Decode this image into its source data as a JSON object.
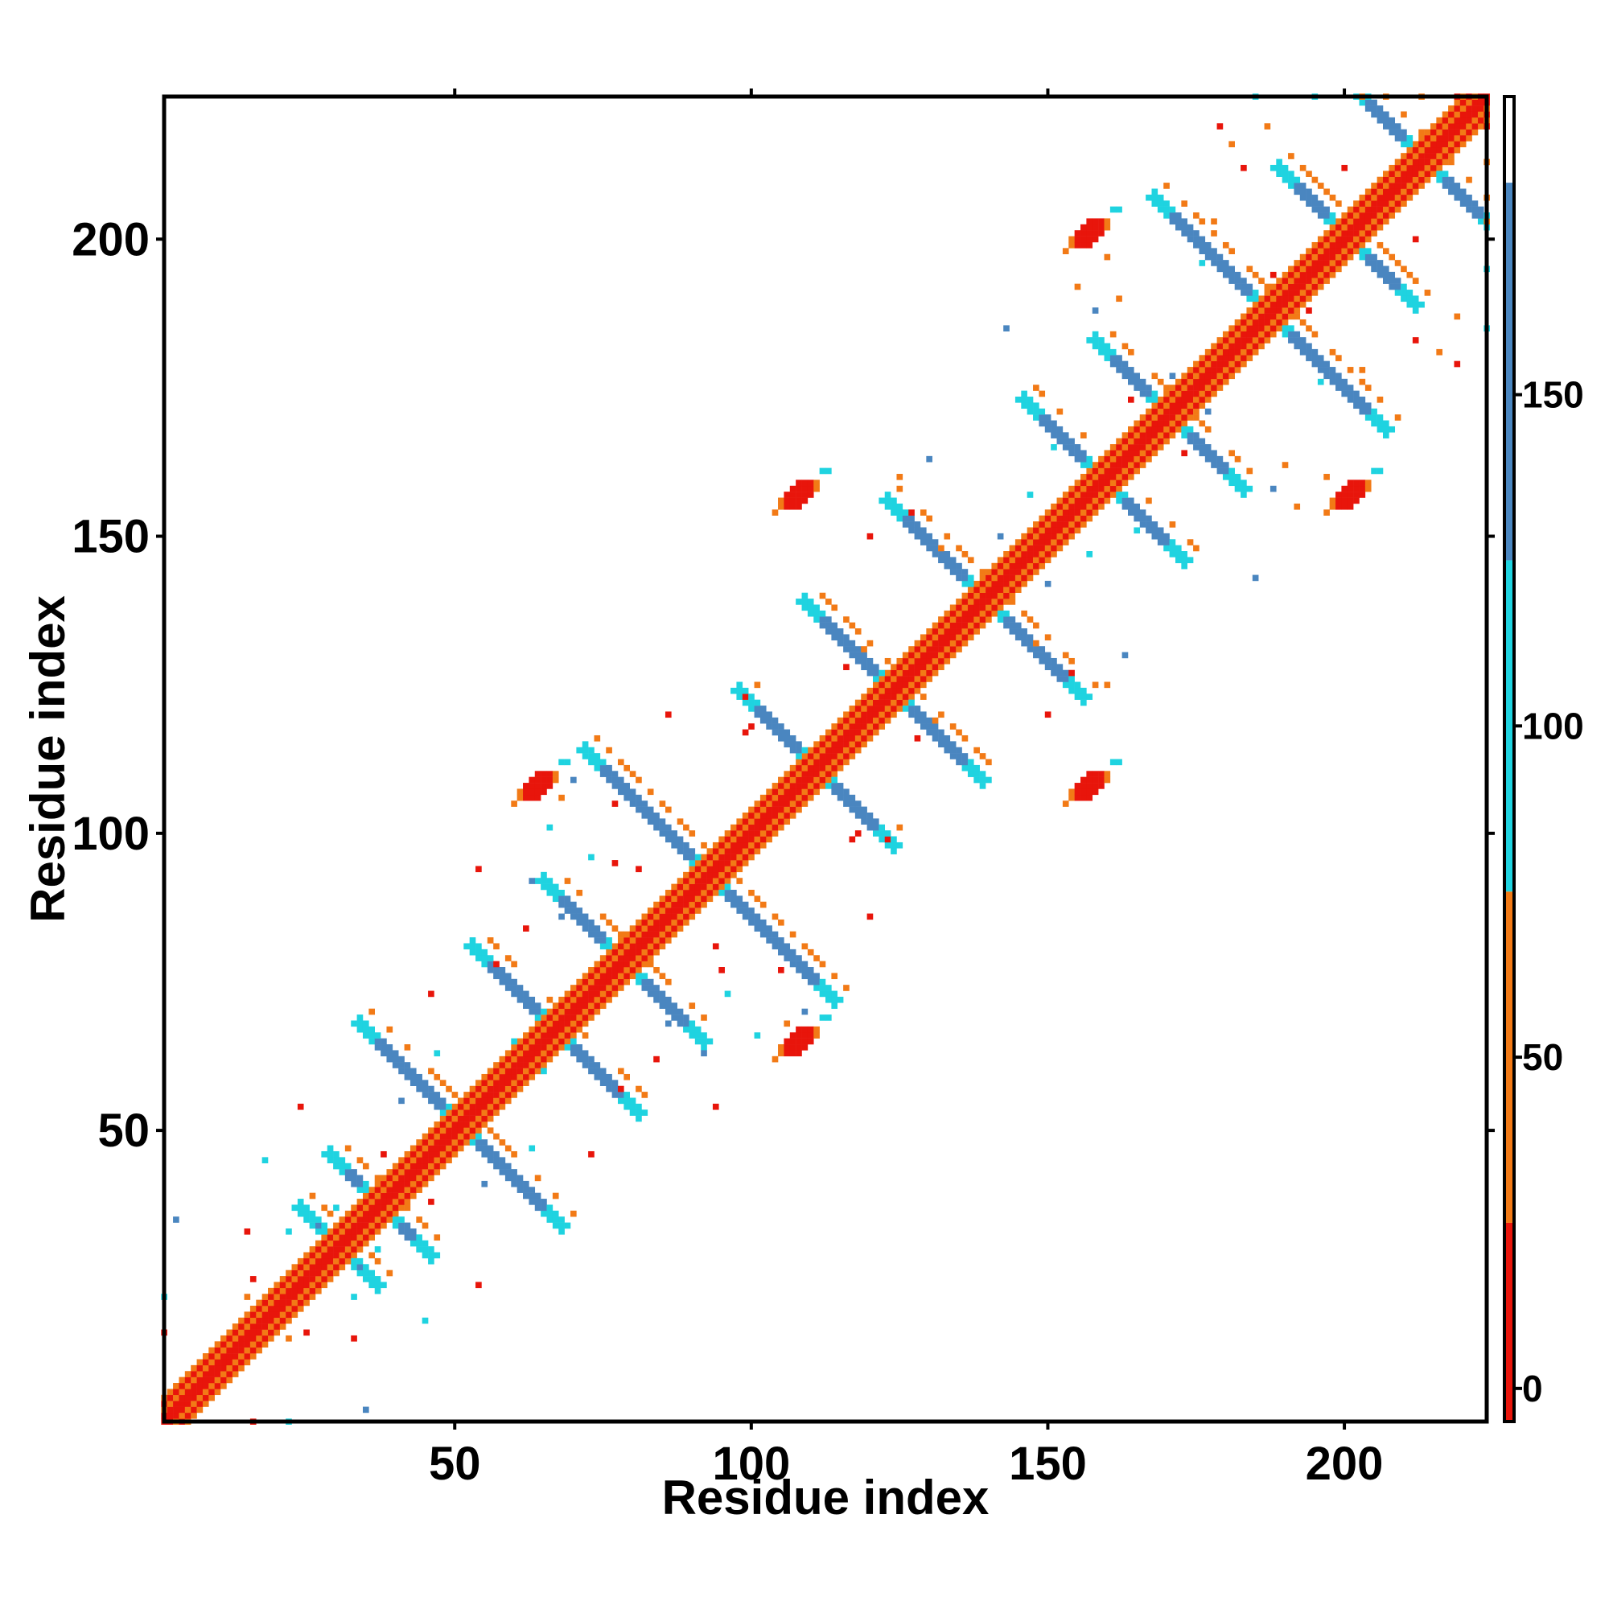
{
  "chart_data": {
    "type": "heatmap",
    "title": "",
    "xlabel": "Residue index",
    "ylabel": "Residue index",
    "xlim": [
      1,
      224
    ],
    "ylim": [
      1,
      224
    ],
    "xticks": [
      50,
      100,
      150,
      200
    ],
    "yticks": [
      50,
      100,
      150,
      200
    ],
    "grid": false,
    "colorbar": {
      "ticks": [
        0,
        50,
        100,
        150
      ],
      "range": [
        -5,
        195
      ],
      "colors": [
        {
          "from": -5,
          "to": 25,
          "color": "#e8150b"
        },
        {
          "from": 25,
          "to": 75,
          "color": "#f27a16"
        },
        {
          "from": 75,
          "to": 125,
          "color": "#1fd3e0"
        },
        {
          "from": 125,
          "to": 182,
          "color": "#4a86c0"
        },
        {
          "from": 182,
          "to": 195,
          "color": "#ffffff"
        }
      ]
    },
    "features": [
      {
        "kind": "diagonal",
        "from": 1,
        "to": 224
      },
      {
        "kind": "helix_pair",
        "a": [
          28,
          33
        ],
        "b": [
          28,
          33
        ]
      },
      {
        "kind": "helix_pair",
        "a": [
          33,
          42
        ],
        "b": [
          33,
          42
        ]
      },
      {
        "kind": "helix_pair",
        "a": [
          38,
          64
        ],
        "b": [
          38,
          64
        ]
      },
      {
        "kind": "helix_pair",
        "a": [
          57,
          77
        ],
        "b": [
          57,
          77
        ]
      },
      {
        "kind": "helix_pair",
        "a": [
          69,
          88
        ],
        "b": [
          69,
          88
        ]
      },
      {
        "kind": "helix_pair",
        "a": [
          76,
          110
        ],
        "b": [
          76,
          110
        ]
      },
      {
        "kind": "helix_pair",
        "a": [
          102,
          120
        ],
        "b": [
          102,
          120
        ]
      },
      {
        "kind": "helix_pair",
        "a": [
          113,
          135
        ],
        "b": [
          113,
          135
        ]
      },
      {
        "kind": "helix_pair",
        "a": [
          127,
          152
        ],
        "b": [
          127,
          152
        ]
      },
      {
        "kind": "helix_pair",
        "a": [
          150,
          169
        ],
        "b": [
          150,
          169
        ]
      },
      {
        "kind": "helix_pair",
        "a": [
          162,
          179
        ],
        "b": [
          162,
          179
        ]
      },
      {
        "kind": "helix_pair",
        "a": [
          172,
          203
        ],
        "b": [
          172,
          203
        ]
      },
      {
        "kind": "helix_pair",
        "a": [
          193,
          208
        ],
        "b": [
          193,
          208
        ]
      },
      {
        "kind": "helix_pair",
        "a": [
          205,
          222
        ],
        "b": [
          205,
          222
        ]
      },
      {
        "kind": "blob",
        "x": 108,
        "y": 65
      },
      {
        "kind": "blob",
        "x": 64,
        "y": 108
      },
      {
        "kind": "blob",
        "x": 157,
        "y": 108
      },
      {
        "kind": "blob",
        "x": 108,
        "y": 157
      },
      {
        "kind": "blob",
        "x": 201,
        "y": 157
      },
      {
        "kind": "blob",
        "x": 157,
        "y": 201
      }
    ]
  }
}
